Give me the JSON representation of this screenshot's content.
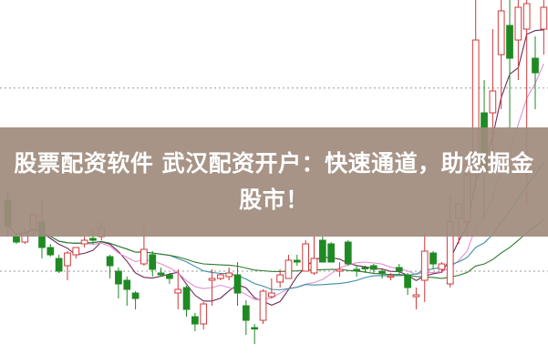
{
  "headline": {
    "line1": "股票配资软件 武汉配资开户：快速通道，助您掘金",
    "line2": "股市！"
  },
  "colors": {
    "up": "#d0383a",
    "down": "#1f8a24",
    "ma5": "#6e2a55",
    "ma10": "#e28fd6",
    "ma20": "#3b8fa6",
    "ma60": "#2f7a2f",
    "grid": "#9a9a9a",
    "overlay": "#a08c7e"
  },
  "chart_data": {
    "type": "candlestick",
    "title": "",
    "grid": true,
    "ylim": [
      0,
      10
    ],
    "fields": [
      "open",
      "close",
      "high",
      "low"
    ],
    "candles": [
      [
        4.5,
        3.8,
        4.75,
        3.5
      ],
      [
        3.5,
        3.35,
        3.6,
        3.3
      ],
      [
        3.35,
        3.6,
        3.7,
        3.3
      ],
      [
        3.7,
        4.1,
        4.1,
        3.5
      ],
      [
        3.9,
        3.2,
        4.5,
        2.9
      ],
      [
        3.2,
        3.0,
        3.3,
        2.95
      ],
      [
        2.9,
        2.55,
        3.0,
        2.5
      ],
      [
        2.7,
        3.05,
        3.1,
        2.3
      ],
      [
        3.0,
        3.2,
        3.2,
        2.9
      ],
      [
        3.3,
        3.4,
        3.5,
        3.2
      ],
      [
        3.45,
        3.4,
        3.7,
        3.3
      ],
      [
        3.5,
        3.75,
        3.9,
        3.4
      ],
      [
        2.95,
        2.7,
        3.0,
        2.35
      ],
      [
        2.55,
        2.2,
        2.65,
        1.8
      ],
      [
        2.3,
        2.05,
        2.4,
        1.6
      ],
      [
        1.95,
        1.8,
        2.0,
        1.5
      ],
      [
        2.75,
        3.15,
        3.8,
        2.7
      ],
      [
        3.0,
        2.6,
        3.1,
        2.4
      ],
      [
        2.5,
        2.45,
        2.65,
        2.4
      ],
      [
        2.45,
        2.35,
        2.5,
        2.2
      ],
      [
        1.95,
        2.05,
        2.6,
        1.5
      ],
      [
        2.1,
        1.5,
        2.15,
        1.3
      ],
      [
        1.3,
        1.1,
        1.4,
        0.9
      ],
      [
        1.1,
        1.65,
        1.7,
        0.95
      ],
      [
        2.3,
        2.35,
        2.6,
        1.6
      ],
      [
        2.35,
        2.45,
        2.5,
        2.3
      ],
      [
        2.4,
        2.5,
        2.65,
        2.3
      ],
      [
        2.45,
        1.95,
        2.8,
        1.6
      ],
      [
        1.6,
        1.2,
        1.75,
        0.8
      ],
      [
        1.0,
        0.98,
        1.1,
        0.55
      ],
      [
        1.2,
        2.0,
        2.05,
        1.1
      ],
      [
        1.85,
        1.95,
        2.35,
        1.8
      ],
      [
        2.25,
        2.45,
        2.6,
        2.1
      ],
      [
        2.35,
        2.85,
        3.0,
        2.35
      ],
      [
        2.85,
        2.8,
        3.0,
        2.7
      ],
      [
        2.55,
        3.3,
        3.4,
        2.55
      ],
      [
        2.5,
        2.9,
        3.5,
        2.45
      ],
      [
        3.4,
        2.8,
        3.5,
        2.8
      ],
      [
        3.3,
        2.8,
        3.35,
        2.8
      ],
      [
        2.55,
        2.6,
        2.8,
        2.4
      ],
      [
        3.35,
        2.75,
        3.4,
        2.7
      ],
      [
        2.6,
        2.58,
        2.7,
        2.4
      ],
      [
        2.65,
        2.62,
        2.7,
        2.5
      ],
      [
        2.7,
        2.6,
        2.75,
        2.5
      ],
      [
        2.55,
        2.5,
        2.6,
        2.35
      ],
      [
        2.4,
        2.42,
        2.5,
        2.3
      ],
      [
        2.65,
        2.55,
        2.75,
        2.45
      ],
      [
        2.45,
        2.1,
        2.5,
        1.9
      ],
      [
        1.85,
        1.9,
        2.1,
        1.5
      ],
      [
        2.3,
        3.1,
        3.6,
        1.7
      ],
      [
        3.05,
        2.75,
        3.1,
        2.6
      ],
      [
        2.6,
        2.75,
        2.8,
        2.5
      ],
      [
        2.2,
        3.9,
        4.6,
        2.1
      ],
      [
        4.0,
        4.4,
        4.4,
        3.3
      ],
      [
        3.9,
        5.2,
        5.5,
        3.5
      ],
      [
        5.2,
        8.9,
        10,
        4.8
      ],
      [
        6.9,
        5.3,
        7.8,
        4.0
      ],
      [
        6.9,
        7.5,
        9.2,
        5.8
      ],
      [
        8.5,
        9.7,
        10,
        7.0
      ],
      [
        9.3,
        8.4,
        10,
        6.5
      ],
      [
        8.9,
        9.8,
        10,
        7.8
      ],
      [
        9.2,
        9.9,
        10,
        4.4
      ],
      [
        8.4,
        8.0,
        9.0,
        7.0
      ],
      [
        9.2,
        9.8,
        10,
        8.5
      ]
    ],
    "grid_levels": [
      2.55,
      7.58
    ]
  }
}
